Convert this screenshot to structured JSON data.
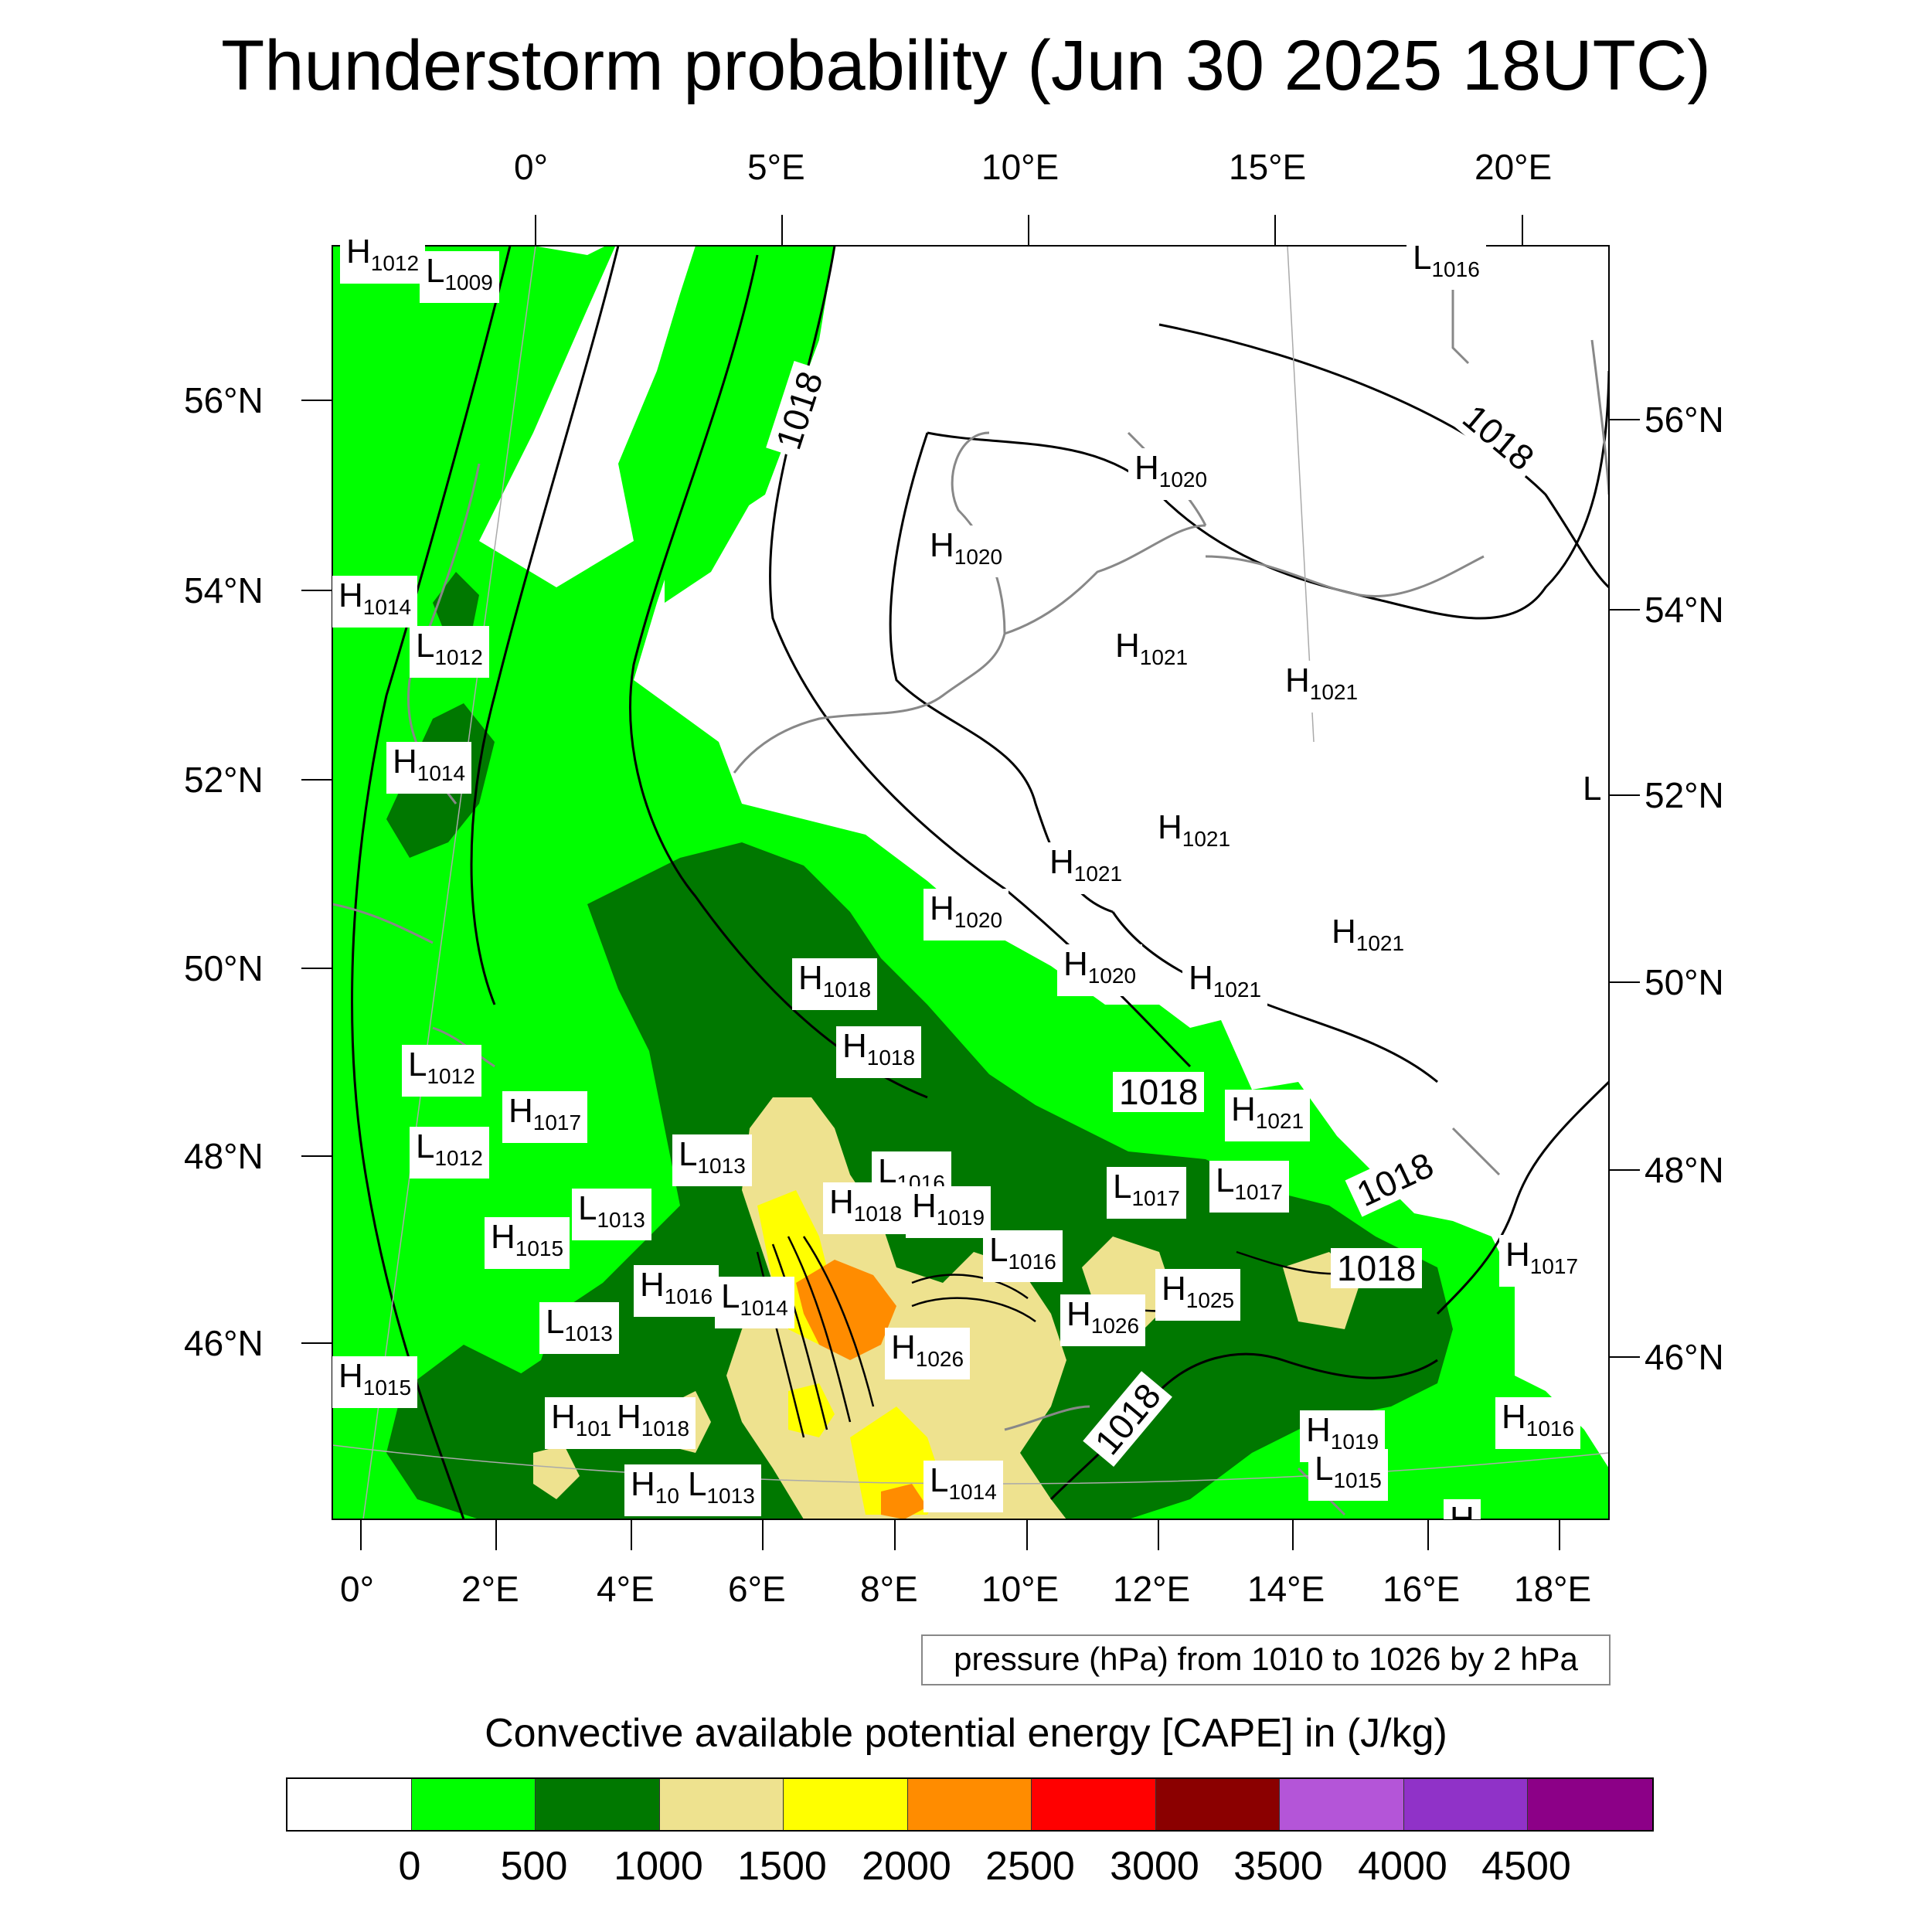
{
  "title": "Thunderstorm probability (Jun 30 2025 18UTC)",
  "top_lon_ticks": [
    "0°",
    "5°E",
    "10°E",
    "15°E",
    "20°E"
  ],
  "bottom_lon_ticks": [
    "0°",
    "2°E",
    "4°E",
    "6°E",
    "8°E",
    "10°E",
    "12°E",
    "14°E",
    "16°E",
    "18°E"
  ],
  "left_lat_ticks": [
    "56°N",
    "54°N",
    "52°N",
    "50°N",
    "48°N",
    "46°N"
  ],
  "right_lat_ticks": [
    "56°N",
    "54°N",
    "52°N",
    "50°N",
    "48°N",
    "46°N"
  ],
  "pressure_info": "pressure (hPa) from 1010 to 1026 by 2 hPa",
  "colorbar": {
    "title": "Convective available potential energy [CAPE] in (J/kg)",
    "ticks": [
      "0",
      "500",
      "1000",
      "1500",
      "2000",
      "2500",
      "3000",
      "3500",
      "4000",
      "4500"
    ],
    "colors": [
      "#ffffff",
      "#00ff00",
      "#007800",
      "#eee28f",
      "#ffff00",
      "#ff8c00",
      "#ff0000",
      "#8b0000",
      "#b455d8",
      "#9032c8",
      "#8c0087"
    ]
  },
  "isobar_labels": [
    "1018",
    "1018",
    "1018",
    "1018",
    "1018",
    "1018"
  ],
  "pressure_centers": [
    {
      "t": "H",
      "v": "1012"
    },
    {
      "t": "L",
      "v": "1009"
    },
    {
      "t": "L",
      "v": "1016"
    },
    {
      "t": "H",
      "v": "1014"
    },
    {
      "t": "L",
      "v": "1012"
    },
    {
      "t": "H",
      "v": "1014"
    },
    {
      "t": "H",
      "v": "1020"
    },
    {
      "t": "H",
      "v": "1020"
    },
    {
      "t": "H",
      "v": "1021"
    },
    {
      "t": "H",
      "v": "1021"
    },
    {
      "t": "H",
      "v": "1021"
    },
    {
      "t": "H",
      "v": "1021"
    },
    {
      "t": "L",
      "v": ""
    },
    {
      "t": "H",
      "v": "1020"
    },
    {
      "t": "H",
      "v": "1021"
    },
    {
      "t": "H",
      "v": "1020"
    },
    {
      "t": "H",
      "v": "1021"
    },
    {
      "t": "H",
      "v": "1018"
    },
    {
      "t": "H",
      "v": "1018"
    },
    {
      "t": "L",
      "v": "1012"
    },
    {
      "t": "H",
      "v": "1017"
    },
    {
      "t": "H",
      "v": "1021"
    },
    {
      "t": "L",
      "v": "1012"
    },
    {
      "t": "L",
      "v": "1013"
    },
    {
      "t": "L",
      "v": "1016"
    },
    {
      "t": "L",
      "v": "1017"
    },
    {
      "t": "L",
      "v": "1017"
    },
    {
      "t": "H",
      "v": "1018"
    },
    {
      "t": "H",
      "v": "1019"
    },
    {
      "t": "L",
      "v": "1013"
    },
    {
      "t": "H",
      "v": "1015"
    },
    {
      "t": "L",
      "v": "1016"
    },
    {
      "t": "H",
      "v": "1017"
    },
    {
      "t": "H",
      "v": "1016"
    },
    {
      "t": "L",
      "v": "1014"
    },
    {
      "t": "H",
      "v": "1025"
    },
    {
      "t": "H",
      "v": "1026"
    },
    {
      "t": "L",
      "v": "1013"
    },
    {
      "t": "H",
      "v": "1026"
    },
    {
      "t": "H",
      "v": "1015"
    },
    {
      "t": "H",
      "v": "101"
    },
    {
      "t": "H",
      "v": "1018"
    },
    {
      "t": "H",
      "v": "1019"
    },
    {
      "t": "H",
      "v": "1016"
    },
    {
      "t": "L",
      "v": "1015"
    },
    {
      "t": "H",
      "v": "10"
    },
    {
      "t": "L",
      "v": "1013"
    },
    {
      "t": "L",
      "v": "1014"
    },
    {
      "t": "H",
      "v": ""
    }
  ]
}
